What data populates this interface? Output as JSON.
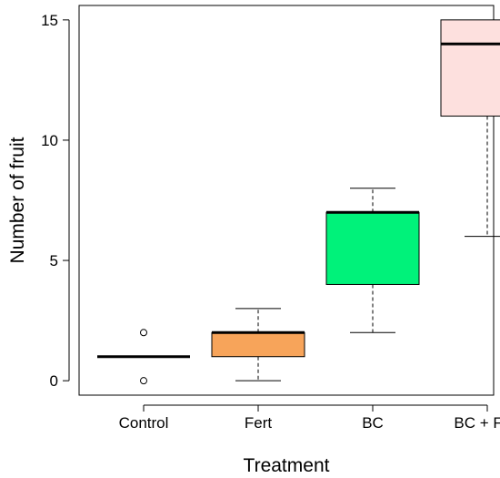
{
  "chart_data": {
    "type": "box",
    "title": "",
    "xlabel": "Treatment",
    "ylabel": "Number of fruit",
    "ylim": [
      -0.6,
      15.6
    ],
    "yticks": [
      0,
      5,
      10,
      15
    ],
    "grid": false,
    "legend": "none",
    "categories": [
      "Control",
      "Fert",
      "BC",
      "BC + Fert"
    ],
    "boxes": [
      {
        "category": "Control",
        "whisker_low": 1,
        "q1": 1,
        "median": 1,
        "q3": 1,
        "whisker_high": 1,
        "outliers": [
          0,
          2
        ],
        "fill": "#ffffff"
      },
      {
        "category": "Fert",
        "whisker_low": 0,
        "q1": 1,
        "median": 2,
        "q3": 2,
        "whisker_high": 3,
        "outliers": [],
        "fill": "#f7a45a"
      },
      {
        "category": "BC",
        "whisker_low": 2,
        "q1": 4,
        "median": 7,
        "q3": 7,
        "whisker_high": 8,
        "outliers": [],
        "fill": "#00f27a"
      },
      {
        "category": "BC + Fert",
        "whisker_low": 6,
        "q1": 11,
        "median": 14,
        "q3": 15,
        "whisker_high": 15,
        "outliers": [],
        "fill": "#fde0de"
      }
    ]
  }
}
